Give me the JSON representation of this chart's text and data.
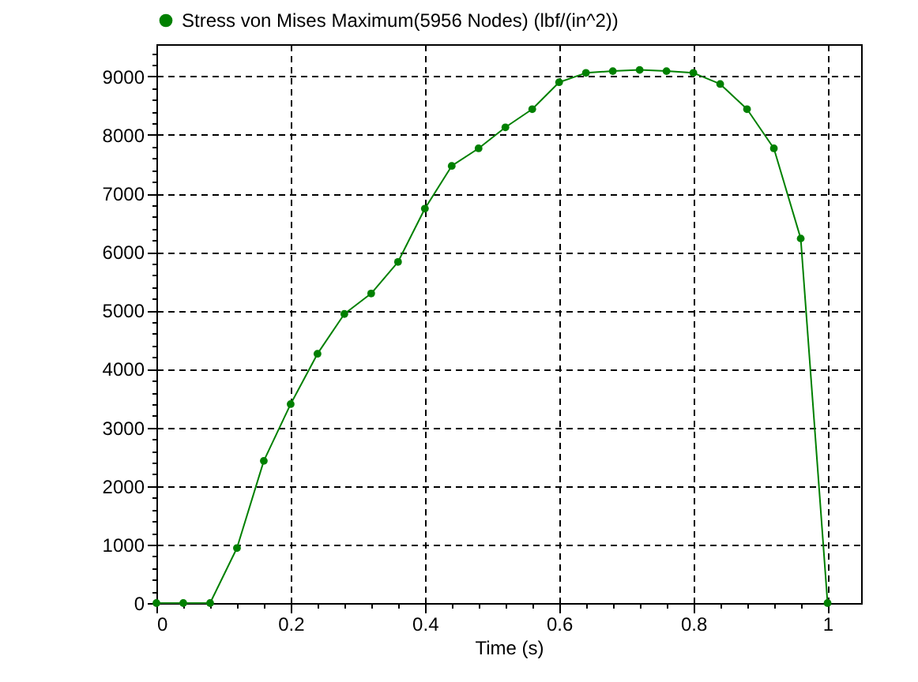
{
  "chart_data": {
    "type": "line",
    "xlabel": "Time (s)",
    "x": [
      0,
      0.04,
      0.08,
      0.12,
      0.16,
      0.2,
      0.24,
      0.28,
      0.32,
      0.36,
      0.4,
      0.44,
      0.48,
      0.52,
      0.56,
      0.6,
      0.64,
      0.68,
      0.72,
      0.76,
      0.8,
      0.84,
      0.88,
      0.92,
      0.96,
      1
    ],
    "series": [
      {
        "name": "Stress von Mises Maximum(5956 Nodes) (lbf/(in^2))",
        "color": "#008000",
        "values": [
          0,
          0,
          0,
          940,
          2430,
          3400,
          4260,
          4940,
          5290,
          5830,
          6740,
          7470,
          7770,
          8130,
          8440,
          8900,
          9060,
          9090,
          9110,
          9090,
          9060,
          8870,
          8440,
          7770,
          6230,
          0
        ]
      }
    ],
    "xlim": [
      0,
      1.05
    ],
    "ylim": [
      0,
      9550
    ],
    "xticks": [
      0,
      {
        "value": 0.04,
        "label": null
      },
      {
        "value": 0.08,
        "label": null
      },
      {
        "value": 0.12,
        "label": null
      },
      {
        "value": 0.16,
        "label": null
      },
      0.2,
      {
        "value": 0.24,
        "label": null
      },
      {
        "value": 0.28,
        "label": null
      },
      {
        "value": 0.32,
        "label": null
      },
      {
        "value": 0.36,
        "label": null
      },
      0.4,
      {
        "value": 0.44,
        "label": null
      },
      {
        "value": 0.48,
        "label": null
      },
      {
        "value": 0.52,
        "label": null
      },
      {
        "value": 0.56,
        "label": null
      },
      0.6,
      {
        "value": 0.64,
        "label": null
      },
      {
        "value": 0.68,
        "label": null
      },
      {
        "value": 0.72,
        "label": null
      },
      {
        "value": 0.76,
        "label": null
      },
      0.8,
      {
        "value": 0.84,
        "label": null
      },
      {
        "value": 0.88,
        "label": null
      },
      {
        "value": 0.92,
        "label": null
      },
      {
        "value": 0.96,
        "label": null
      },
      1
    ],
    "yticks": [
      0,
      {
        "value": 200,
        "label": null
      },
      {
        "value": 400,
        "label": null
      },
      {
        "value": 600,
        "label": null
      },
      {
        "value": 800,
        "label": null
      },
      1000,
      {
        "value": 1200,
        "label": null
      },
      {
        "value": 1400,
        "label": null
      },
      {
        "value": 1600,
        "label": null
      },
      {
        "value": 1800,
        "label": null
      },
      2000,
      {
        "value": 2200,
        "label": null
      },
      {
        "value": 2400,
        "label": null
      },
      {
        "value": 2600,
        "label": null
      },
      {
        "value": 2800,
        "label": null
      },
      3000,
      {
        "value": 3200,
        "label": null
      },
      {
        "value": 3400,
        "label": null
      },
      {
        "value": 3600,
        "label": null
      },
      {
        "value": 3800,
        "label": null
      },
      4000,
      {
        "value": 4200,
        "label": null
      },
      {
        "value": 4400,
        "label": null
      },
      {
        "value": 4600,
        "label": null
      },
      {
        "value": 4800,
        "label": null
      },
      5000,
      {
        "value": 5200,
        "label": null
      },
      {
        "value": 5400,
        "label": null
      },
      {
        "value": 5600,
        "label": null
      },
      {
        "value": 5800,
        "label": null
      },
      6000,
      {
        "value": 6200,
        "label": null
      },
      {
        "value": 6400,
        "label": null
      },
      {
        "value": 6600,
        "label": null
      },
      {
        "value": 6800,
        "label": null
      },
      7000,
      {
        "value": 7200,
        "label": null
      },
      {
        "value": 7400,
        "label": null
      },
      {
        "value": 7600,
        "label": null
      },
      {
        "value": 7800,
        "label": null
      },
      8000,
      {
        "value": 8200,
        "label": null
      },
      {
        "value": 8400,
        "label": null
      },
      {
        "value": 8600,
        "label": null
      },
      {
        "value": 8800,
        "label": null
      },
      9000,
      {
        "value": 9200,
        "label": null
      },
      {
        "value": 9400,
        "label": null
      }
    ],
    "grid": true,
    "legend": "top left",
    "marker": "circle",
    "line_style": "solid"
  }
}
